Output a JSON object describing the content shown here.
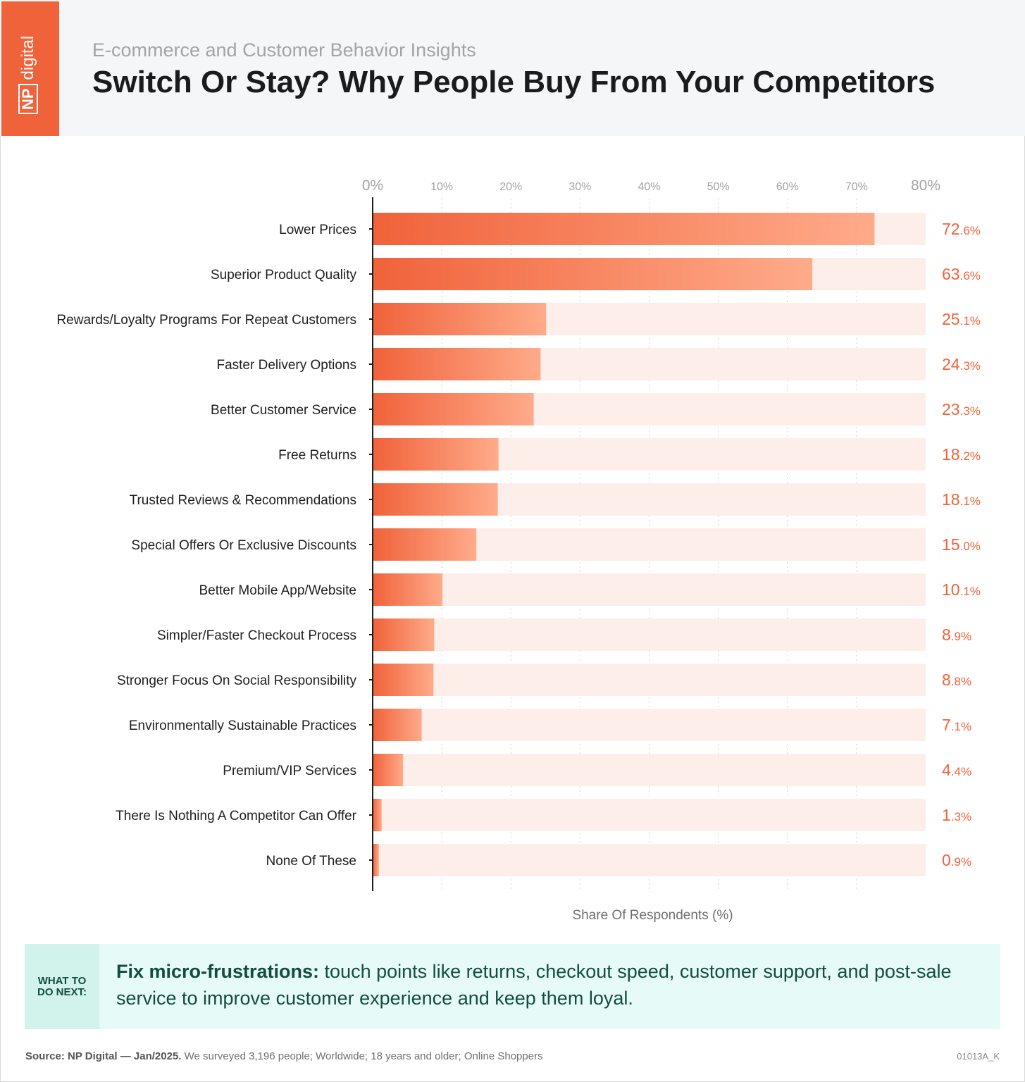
{
  "header": {
    "brand": {
      "box": "NP",
      "word": "digital"
    },
    "kicker": "E-commerce and Customer Behavior Insights",
    "title": "Switch Or Stay? Why People Buy From Your Competitors"
  },
  "chart_data": {
    "type": "bar",
    "orientation": "horizontal",
    "categories": [
      "Lower Prices",
      "Superior Product Quality",
      "Rewards/Loyalty Programs For Repeat Customers",
      "Faster Delivery Options",
      "Better Customer Service",
      "Free Returns",
      "Trusted Reviews & Recommendations",
      "Special Offers Or Exclusive Discounts",
      "Better Mobile App/Website",
      "Simpler/Faster Checkout Process",
      "Stronger Focus On Social Responsibility",
      "Environmentally Sustainable Practices",
      "Premium/VIP Services",
      "There Is Nothing A Competitor Can Offer",
      "None Of These"
    ],
    "values": [
      72.6,
      63.6,
      25.1,
      24.3,
      23.3,
      18.2,
      18.1,
      15.0,
      10.1,
      8.9,
      8.8,
      7.1,
      4.4,
      1.3,
      0.9
    ],
    "value_labels": [
      [
        "72",
        ".6%"
      ],
      [
        "63",
        ".6%"
      ],
      [
        "25",
        ".1%"
      ],
      [
        "24",
        ".3%"
      ],
      [
        "23",
        ".3%"
      ],
      [
        "18",
        ".2%"
      ],
      [
        "18",
        ".1%"
      ],
      [
        "15",
        ".0%"
      ],
      [
        "10",
        ".1%"
      ],
      [
        "8",
        ".9%"
      ],
      [
        "8",
        ".8%"
      ],
      [
        "7",
        ".1%"
      ],
      [
        "4",
        ".4%"
      ],
      [
        "1",
        ".3%"
      ],
      [
        "0",
        ".9%"
      ]
    ],
    "xlim": [
      0,
      80
    ],
    "xticks": [
      "0%",
      "10%",
      "20%",
      "30%",
      "40%",
      "50%",
      "60%",
      "70%",
      "80%"
    ],
    "xlabel": "Share Of Respondents (%)",
    "grid": true,
    "colors": {
      "bar_start": "#f0623a",
      "bar_end": "#ffab8a",
      "track": "#fdeeea",
      "value": "#f0623a"
    }
  },
  "callout": {
    "tag": "WHAT TO\nDO NEXT:",
    "lead": "Fix micro-frustrations:",
    "text": " touch points like returns, checkout speed, customer support, and post-sale service to improve customer experience and keep them loyal."
  },
  "footer": {
    "source_label": "Source: NP Digital — Jan/2025.",
    "source_text": " We surveyed 3,196 people; Worldwide; 18 years and older; Online Shoppers",
    "code": "01013A_K"
  }
}
